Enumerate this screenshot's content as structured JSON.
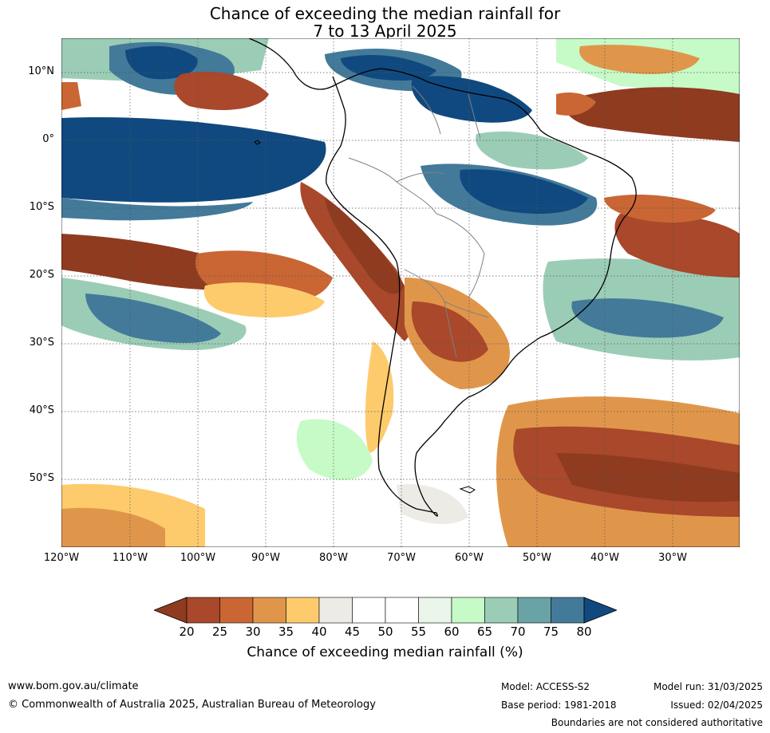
{
  "title": {
    "line1": "Chance of exceeding the median rainfall for",
    "line2": "7 to 13 April 2025"
  },
  "map": {
    "lat_labels": [
      "10°N",
      "0°",
      "10°S",
      "20°S",
      "30°S",
      "40°S",
      "50°S"
    ],
    "lon_labels": [
      "120°W",
      "110°W",
      "100°W",
      "90°W",
      "80°W",
      "70°W",
      "60°W",
      "50°W",
      "40°W",
      "30°W"
    ]
  },
  "colorbar": {
    "ticks": [
      "20",
      "25",
      "30",
      "35",
      "40",
      "45",
      "50",
      "55",
      "60",
      "65",
      "70",
      "75",
      "80"
    ],
    "label": "Chance of exceeding median rainfall (%)",
    "under_color": "#8f3b20",
    "colors": [
      "#a9482a",
      "#c96634",
      "#e0964a",
      "#fdcb6c",
      "#edebe6",
      "#ffffff",
      "#ffffff",
      "#e8f5e8",
      "#c6fac7",
      "#9bcdb6",
      "#6aa3a6",
      "#437a9a"
    ],
    "over_color": "#10497f"
  },
  "footer": {
    "url": "www.bom.gov.au/climate",
    "copyright": "© Commonwealth of Australia 2025, Australian Bureau of Meteorology",
    "model": "Model: ACCESS-S2",
    "base_period": "Base period: 1981-2018",
    "model_run": "Model run: 31/03/2025",
    "issued": "Issued: 02/04/2025",
    "disclaimer": "Boundaries are not considered authoritative"
  }
}
